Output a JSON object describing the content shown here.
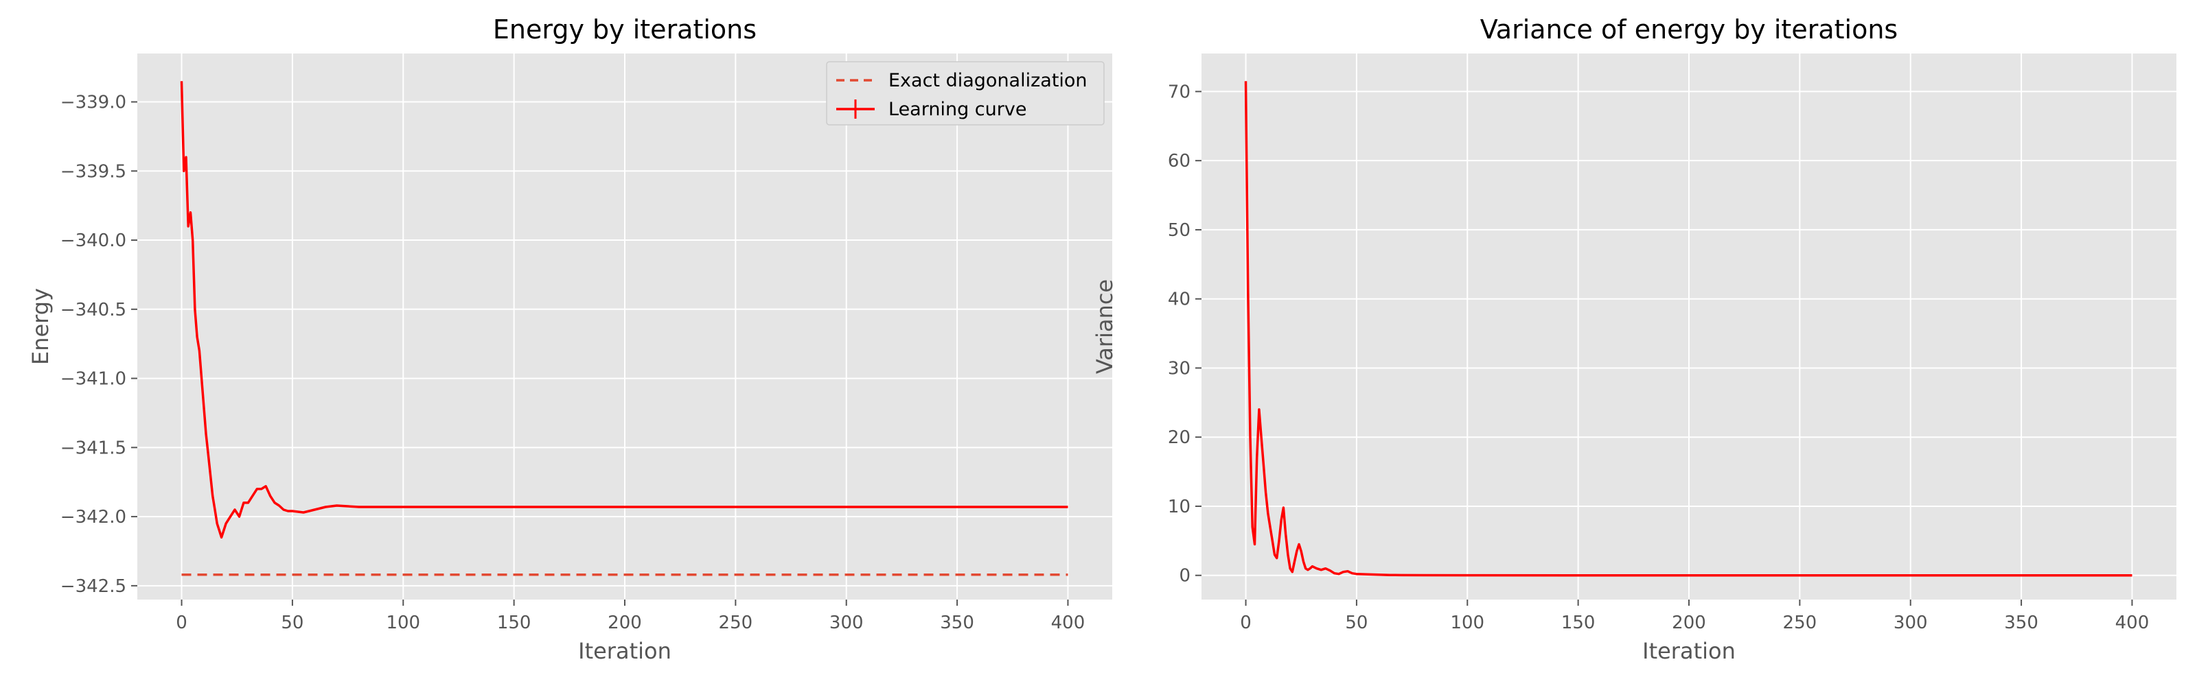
{
  "colors": {
    "axes_bg": "#E5E5E5",
    "grid": "#FFFFFF",
    "tick": "#555555",
    "line": "#FF0000",
    "exact": "#E24A33"
  },
  "chart_data": [
    {
      "type": "line",
      "title": "Energy by iterations",
      "xlabel": "Iteration",
      "ylabel": "Energy",
      "xlim": [
        -20,
        420
      ],
      "ylim": [
        -342.6,
        -338.65
      ],
      "xticks": [
        0,
        50,
        100,
        150,
        200,
        250,
        300,
        350,
        400
      ],
      "yticks": [
        -342.5,
        -342.0,
        -341.5,
        -341.0,
        -340.5,
        -340.0,
        -339.5,
        -339.0
      ],
      "ytick_labels": [
        "−342.5",
        "−342.0",
        "−341.5",
        "−341.0",
        "−340.5",
        "−340.0",
        "−339.5",
        "−339.0"
      ],
      "grid": true,
      "legend": "upper-right",
      "series": [
        {
          "name": "Exact diagonalization",
          "style": "dashed",
          "x": [
            0,
            400
          ],
          "y": [
            -342.42,
            -342.42
          ]
        },
        {
          "name": "Learning curve",
          "style": "solid-errorbar",
          "x": [
            0,
            1,
            2,
            3,
            4,
            5,
            6,
            7,
            8,
            9,
            10,
            11,
            12,
            13,
            14,
            15,
            16,
            17,
            18,
            19,
            20,
            22,
            24,
            26,
            28,
            30,
            32,
            34,
            36,
            38,
            40,
            42,
            44,
            46,
            48,
            50,
            55,
            60,
            65,
            70,
            80,
            100,
            150,
            200,
            250,
            300,
            350,
            400
          ],
          "y": [
            -338.85,
            -339.5,
            -339.4,
            -339.9,
            -339.8,
            -340.0,
            -340.5,
            -340.7,
            -340.8,
            -341.0,
            -341.2,
            -341.4,
            -341.55,
            -341.7,
            -341.85,
            -341.95,
            -342.05,
            -342.1,
            -342.15,
            -342.1,
            -342.05,
            -342.0,
            -341.95,
            -342.0,
            -341.9,
            -341.9,
            -341.85,
            -341.8,
            -341.8,
            -341.78,
            -341.85,
            -341.9,
            -341.92,
            -341.95,
            -341.96,
            -341.96,
            -341.97,
            -341.95,
            -341.93,
            -341.92,
            -341.93,
            -341.93,
            -341.93,
            -341.93,
            -341.93,
            -341.93,
            -341.93,
            -341.93
          ]
        }
      ]
    },
    {
      "type": "line",
      "title": "Variance of energy by iterations",
      "xlabel": "Iteration",
      "ylabel": "Variance",
      "xlim": [
        -20,
        420
      ],
      "ylim": [
        -3.5,
        75.5
      ],
      "xticks": [
        0,
        50,
        100,
        150,
        200,
        250,
        300,
        350,
        400
      ],
      "yticks": [
        0,
        10,
        20,
        30,
        40,
        50,
        60,
        70
      ],
      "ytick_labels": [
        "0",
        "10",
        "20",
        "30",
        "40",
        "50",
        "60",
        "70"
      ],
      "grid": true,
      "series": [
        {
          "style": "solid",
          "x": [
            0,
            1,
            2,
            3,
            4,
            5,
            6,
            7,
            8,
            9,
            10,
            11,
            12,
            13,
            14,
            15,
            16,
            17,
            18,
            19,
            20,
            21,
            22,
            23,
            24,
            25,
            26,
            27,
            28,
            29,
            30,
            32,
            34,
            36,
            38,
            40,
            42,
            44,
            46,
            48,
            50,
            55,
            60,
            65,
            70,
            80,
            100,
            150,
            200,
            250,
            300,
            350,
            400
          ],
          "y": [
            71.5,
            41,
            20,
            7,
            4.5,
            17,
            24,
            20,
            16,
            12,
            9,
            7,
            5,
            3,
            2.5,
            5,
            8,
            9.8,
            6,
            3,
            1,
            0.5,
            2,
            3.5,
            4.5,
            3.5,
            2,
            1,
            0.8,
            1,
            1.3,
            1,
            0.8,
            1,
            0.7,
            0.3,
            0.2,
            0.5,
            0.6,
            0.3,
            0.2,
            0.15,
            0.1,
            0.05,
            0.03,
            0.02,
            0.01,
            0,
            0,
            0,
            0,
            0,
            0
          ]
        }
      ]
    }
  ]
}
